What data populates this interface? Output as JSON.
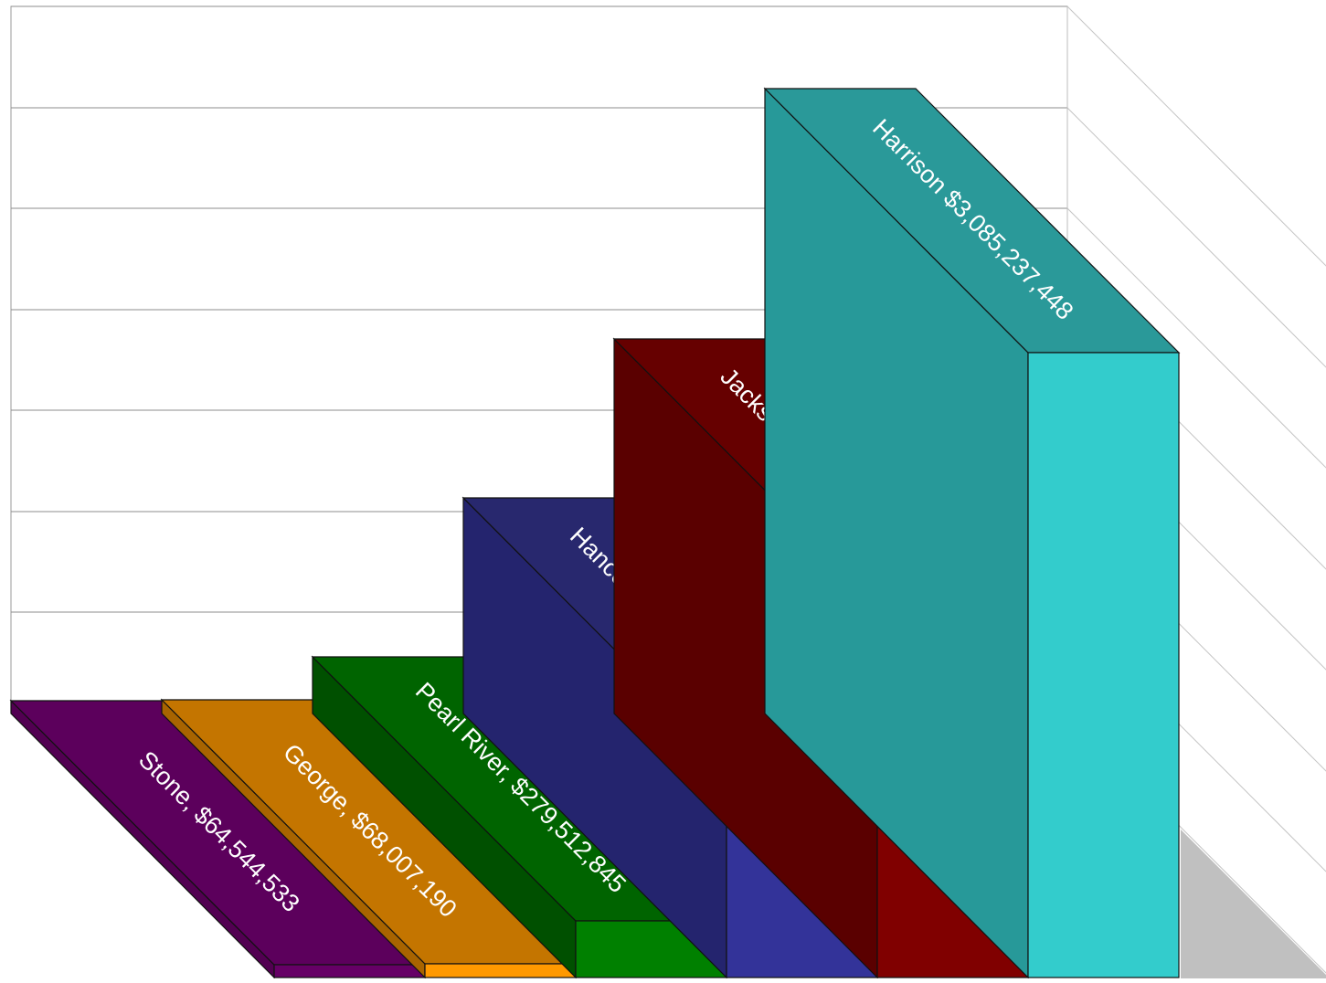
{
  "chart_data": {
    "type": "bar",
    "style": "3d-column",
    "grid": true,
    "categories": [
      "Stone",
      "George",
      "Pearl River",
      "Hancock",
      "Jackson",
      "Harrison"
    ],
    "values": [
      64544533,
      68007190,
      279512845,
      1064743057,
      1850263497,
      3085237448
    ],
    "labels": [
      "Stone, $64,544,533",
      "George, $68,007,190",
      "Pearl River, $279,512,845",
      "Hancock $1,064,743,057",
      "Jackson, $1,850,263,497",
      "Harrison $3,085,237,448"
    ],
    "colors": [
      {
        "front": "#660066",
        "top": "#5c005c",
        "side": "#520052"
      },
      {
        "front": "#ff9900",
        "top": "#c47500",
        "side": "#a86400"
      },
      {
        "front": "#008000",
        "top": "#006400",
        "side": "#005000"
      },
      {
        "front": "#333399",
        "top": "#28286e",
        "side": "#24246e"
      },
      {
        "front": "#800000",
        "top": "#660000",
        "side": "#5a0000"
      },
      {
        "front": "#33cccc",
        "top": "#2a9999",
        "side": "#279999"
      }
    ],
    "title": "",
    "xlabel": "",
    "ylabel": ""
  }
}
